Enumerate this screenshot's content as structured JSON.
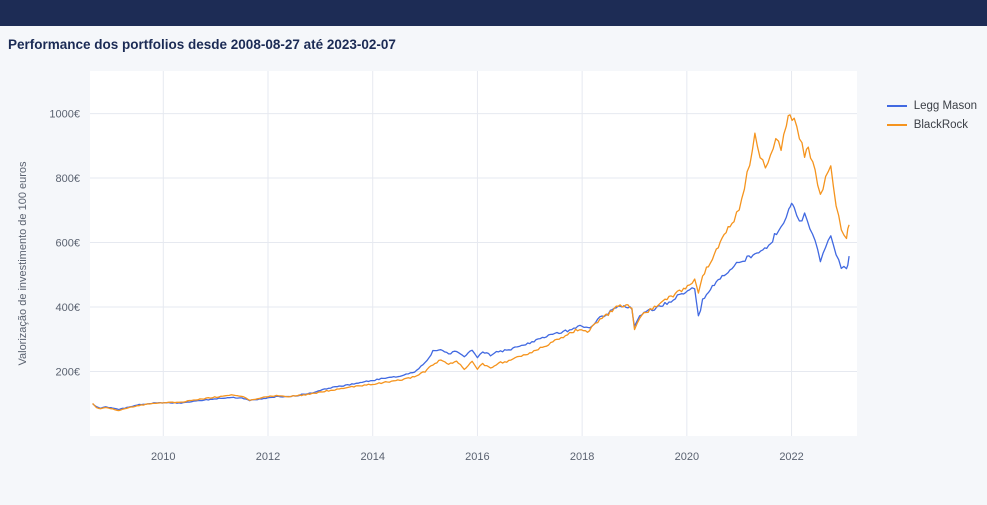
{
  "chart_data": {
    "type": "line",
    "title": "Performance dos portfolios desde 2008-08-27 até 2023-02-07",
    "xlabel": "",
    "ylabel": "Valorização de investimento de 100 euros",
    "x_ticks": [
      2010,
      2012,
      2014,
      2016,
      2018,
      2020,
      2022
    ],
    "y_ticks": [
      200,
      400,
      600,
      800,
      1000
    ],
    "y_tick_suffix": "€",
    "xlim": [
      2008.6,
      2023.25
    ],
    "ylim": [
      0,
      1070
    ],
    "grid": true,
    "legend_position": "top-right",
    "plot_bg": "#ffffff",
    "grid_color": "#e6e9f0",
    "tick_color": "#5a6270",
    "series": [
      {
        "name": "Legg Mason",
        "color": "#4169e1",
        "points": [
          [
            2008.65,
            100
          ],
          [
            2008.72,
            90
          ],
          [
            2008.8,
            86
          ],
          [
            2008.9,
            90
          ],
          [
            2009.0,
            87
          ],
          [
            2009.15,
            82
          ],
          [
            2009.3,
            88
          ],
          [
            2009.5,
            96
          ],
          [
            2009.7,
            100
          ],
          [
            2009.9,
            103
          ],
          [
            2010.1,
            104
          ],
          [
            2010.3,
            102
          ],
          [
            2010.5,
            106
          ],
          [
            2010.7,
            110
          ],
          [
            2010.9,
            113
          ],
          [
            2011.1,
            117
          ],
          [
            2011.3,
            120
          ],
          [
            2011.5,
            118
          ],
          [
            2011.65,
            110
          ],
          [
            2011.8,
            113
          ],
          [
            2012.0,
            119
          ],
          [
            2012.2,
            123
          ],
          [
            2012.4,
            121
          ],
          [
            2012.6,
            127
          ],
          [
            2012.8,
            132
          ],
          [
            2013.0,
            141
          ],
          [
            2013.2,
            150
          ],
          [
            2013.4,
            155
          ],
          [
            2013.6,
            160
          ],
          [
            2013.8,
            167
          ],
          [
            2014.0,
            172
          ],
          [
            2014.2,
            178
          ],
          [
            2014.4,
            182
          ],
          [
            2014.6,
            188
          ],
          [
            2014.8,
            198
          ],
          [
            2015.0,
            228
          ],
          [
            2015.15,
            262
          ],
          [
            2015.3,
            268
          ],
          [
            2015.45,
            252
          ],
          [
            2015.6,
            265
          ],
          [
            2015.75,
            248
          ],
          [
            2015.9,
            268
          ],
          [
            2016.0,
            244
          ],
          [
            2016.1,
            262
          ],
          [
            2016.25,
            250
          ],
          [
            2016.4,
            262
          ],
          [
            2016.6,
            268
          ],
          [
            2016.8,
            278
          ],
          [
            2017.0,
            288
          ],
          [
            2017.2,
            300
          ],
          [
            2017.4,
            312
          ],
          [
            2017.6,
            322
          ],
          [
            2017.8,
            330
          ],
          [
            2018.0,
            342
          ],
          [
            2018.15,
            332
          ],
          [
            2018.3,
            362
          ],
          [
            2018.5,
            382
          ],
          [
            2018.65,
            398
          ],
          [
            2018.8,
            402
          ],
          [
            2018.95,
            395
          ],
          [
            2019.0,
            342
          ],
          [
            2019.1,
            372
          ],
          [
            2019.3,
            390
          ],
          [
            2019.5,
            404
          ],
          [
            2019.7,
            420
          ],
          [
            2019.9,
            442
          ],
          [
            2020.05,
            452
          ],
          [
            2020.15,
            462
          ],
          [
            2020.22,
            368
          ],
          [
            2020.3,
            420
          ],
          [
            2020.45,
            455
          ],
          [
            2020.6,
            482
          ],
          [
            2020.75,
            505
          ],
          [
            2020.9,
            525
          ],
          [
            2021.0,
            538
          ],
          [
            2021.15,
            552
          ],
          [
            2021.3,
            565
          ],
          [
            2021.45,
            578
          ],
          [
            2021.6,
            600
          ],
          [
            2021.75,
            640
          ],
          [
            2021.85,
            665
          ],
          [
            2021.95,
            700
          ],
          [
            2022.0,
            728
          ],
          [
            2022.05,
            705
          ],
          [
            2022.15,
            660
          ],
          [
            2022.25,
            685
          ],
          [
            2022.35,
            640
          ],
          [
            2022.45,
            600
          ],
          [
            2022.55,
            545
          ],
          [
            2022.65,
            590
          ],
          [
            2022.75,
            625
          ],
          [
            2022.85,
            560
          ],
          [
            2022.95,
            525
          ],
          [
            2023.05,
            515
          ],
          [
            2023.1,
            558
          ]
        ]
      },
      {
        "name": "BlackRock",
        "color": "#f5941e",
        "points": [
          [
            2008.65,
            100
          ],
          [
            2008.72,
            88
          ],
          [
            2008.8,
            84
          ],
          [
            2008.9,
            88
          ],
          [
            2009.0,
            85
          ],
          [
            2009.15,
            79
          ],
          [
            2009.3,
            86
          ],
          [
            2009.5,
            94
          ],
          [
            2009.7,
            99
          ],
          [
            2009.9,
            102
          ],
          [
            2010.1,
            105
          ],
          [
            2010.3,
            104
          ],
          [
            2010.5,
            109
          ],
          [
            2010.7,
            114
          ],
          [
            2010.9,
            118
          ],
          [
            2011.1,
            123
          ],
          [
            2011.3,
            128
          ],
          [
            2011.5,
            124
          ],
          [
            2011.65,
            112
          ],
          [
            2011.8,
            116
          ],
          [
            2012.0,
            122
          ],
          [
            2012.2,
            126
          ],
          [
            2012.4,
            122
          ],
          [
            2012.6,
            126
          ],
          [
            2012.8,
            130
          ],
          [
            2013.0,
            136
          ],
          [
            2013.2,
            142
          ],
          [
            2013.4,
            147
          ],
          [
            2013.6,
            152
          ],
          [
            2013.8,
            157
          ],
          [
            2014.0,
            161
          ],
          [
            2014.2,
            166
          ],
          [
            2014.4,
            170
          ],
          [
            2014.6,
            176
          ],
          [
            2014.8,
            184
          ],
          [
            2015.0,
            200
          ],
          [
            2015.15,
            222
          ],
          [
            2015.3,
            236
          ],
          [
            2015.45,
            222
          ],
          [
            2015.6,
            232
          ],
          [
            2015.75,
            208
          ],
          [
            2015.9,
            230
          ],
          [
            2016.0,
            208
          ],
          [
            2016.1,
            224
          ],
          [
            2016.25,
            212
          ],
          [
            2016.4,
            226
          ],
          [
            2016.6,
            232
          ],
          [
            2016.8,
            246
          ],
          [
            2017.0,
            258
          ],
          [
            2017.2,
            272
          ],
          [
            2017.4,
            288
          ],
          [
            2017.6,
            304
          ],
          [
            2017.8,
            322
          ],
          [
            2017.95,
            332
          ],
          [
            2018.1,
            322
          ],
          [
            2018.3,
            356
          ],
          [
            2018.5,
            378
          ],
          [
            2018.65,
            398
          ],
          [
            2018.8,
            406
          ],
          [
            2018.95,
            398
          ],
          [
            2019.0,
            334
          ],
          [
            2019.1,
            368
          ],
          [
            2019.3,
            392
          ],
          [
            2019.5,
            412
          ],
          [
            2019.7,
            432
          ],
          [
            2019.9,
            452
          ],
          [
            2020.05,
            465
          ],
          [
            2020.15,
            492
          ],
          [
            2020.22,
            438
          ],
          [
            2020.3,
            498
          ],
          [
            2020.45,
            540
          ],
          [
            2020.6,
            590
          ],
          [
            2020.75,
            635
          ],
          [
            2020.9,
            672
          ],
          [
            2021.0,
            705
          ],
          [
            2021.1,
            775
          ],
          [
            2021.2,
            845
          ],
          [
            2021.3,
            928
          ],
          [
            2021.4,
            872
          ],
          [
            2021.5,
            822
          ],
          [
            2021.6,
            878
          ],
          [
            2021.7,
            918
          ],
          [
            2021.8,
            895
          ],
          [
            2021.9,
            955
          ],
          [
            2021.97,
            1008
          ],
          [
            2022.05,
            975
          ],
          [
            2022.15,
            925
          ],
          [
            2022.25,
            872
          ],
          [
            2022.32,
            900
          ],
          [
            2022.45,
            815
          ],
          [
            2022.55,
            748
          ],
          [
            2022.65,
            800
          ],
          [
            2022.75,
            838
          ],
          [
            2022.85,
            715
          ],
          [
            2022.95,
            638
          ],
          [
            2023.05,
            618
          ],
          [
            2023.1,
            655
          ]
        ]
      }
    ]
  }
}
